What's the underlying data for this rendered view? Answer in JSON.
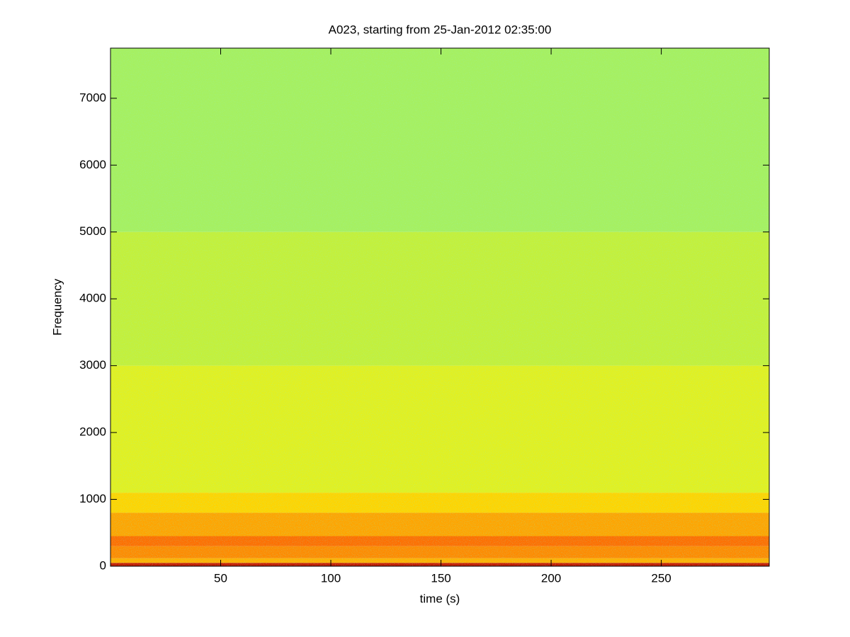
{
  "chart_data": {
    "type": "spectrogram",
    "title": "A023, starting from 25-Jan-2012 02:35:00",
    "x_label": "time (s)",
    "y_label": "Frequency",
    "xlim": [
      0,
      299
    ],
    "ylim": [
      0,
      7750
    ],
    "xticks": [
      50,
      100,
      150,
      200,
      250
    ],
    "yticks": [
      0,
      1000,
      2000,
      3000,
      4000,
      5000,
      6000,
      7000
    ],
    "frequency_bands": [
      {
        "range": [
          0,
          50
        ],
        "color": "#c41a00"
      },
      {
        "range": [
          50,
          120
        ],
        "color": "#ffb000"
      },
      {
        "range": [
          120,
          300
        ],
        "color": "#ff8a00"
      },
      {
        "range": [
          300,
          450
        ],
        "color": "#ff6e00"
      },
      {
        "range": [
          450,
          800
        ],
        "color": "#ffa400"
      },
      {
        "range": [
          800,
          1100
        ],
        "color": "#ffd400"
      },
      {
        "range": [
          1100,
          3000
        ],
        "color": "#e2f020"
      },
      {
        "range": [
          3000,
          5000
        ],
        "color": "#c4f03a"
      },
      {
        "range": [
          5000,
          7750
        ],
        "color": "#a6f060"
      }
    ]
  }
}
